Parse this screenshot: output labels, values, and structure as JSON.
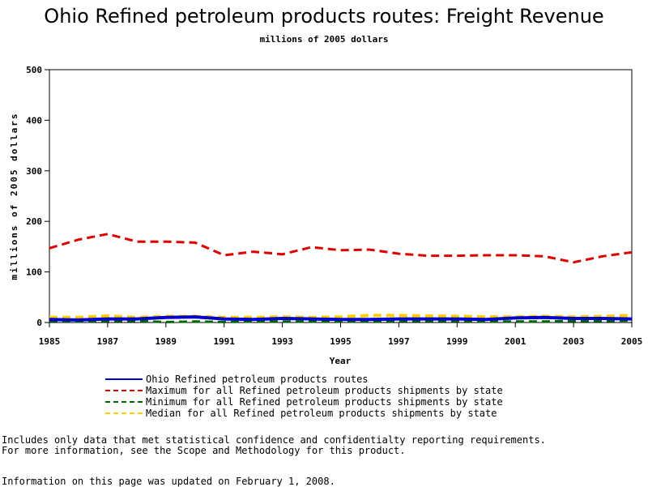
{
  "chart_data": {
    "type": "line",
    "title": "Ohio Refined petroleum products routes: Freight Revenue",
    "subtitle": "millions of 2005 dollars",
    "xlabel": "Year",
    "ylabel": "millions of 2005 dollars",
    "xlim": [
      1985,
      2005
    ],
    "ylim": [
      0,
      500
    ],
    "x_ticks": [
      "1985",
      "1987",
      "1989",
      "1991",
      "1993",
      "1995",
      "1997",
      "1999",
      "2001",
      "2003",
      "2005"
    ],
    "y_ticks": [
      "0",
      "100",
      "200",
      "300",
      "400",
      "500"
    ],
    "x": [
      1985,
      1986,
      1987,
      1988,
      1989,
      1990,
      1991,
      1992,
      1993,
      1994,
      1995,
      1996,
      1997,
      1998,
      1999,
      2000,
      2001,
      2002,
      2003,
      2004,
      2005
    ],
    "series": [
      {
        "name": "Ohio Refined petroleum products routes",
        "color": "#0000cc",
        "values": [
          6,
          5,
          7,
          7,
          10,
          11,
          7,
          6,
          8,
          7,
          6,
          6,
          7,
          7,
          7,
          6,
          9,
          10,
          8,
          8,
          7
        ]
      },
      {
        "name": "Maximum for all Refined petroleum products shipments by state",
        "color": "#dd0000",
        "values": [
          147,
          164,
          175,
          160,
          160,
          158,
          133,
          140,
          135,
          149,
          143,
          144,
          136,
          132,
          132,
          133,
          133,
          131,
          119,
          131,
          139
        ]
      },
      {
        "name": "Minimum for all Refined petroleum products shipments by state",
        "color": "#006600",
        "values": [
          3,
          2,
          3,
          3,
          1,
          2,
          1,
          2,
          2,
          2,
          2,
          2,
          3,
          3,
          3,
          2,
          2,
          2,
          3,
          3,
          4
        ]
      },
      {
        "name": "Median for all Refined petroleum products shipments by state",
        "color": "#ffcc00",
        "values": [
          10,
          10,
          13,
          10,
          12,
          12,
          10,
          10,
          11,
          10,
          11,
          14,
          14,
          13,
          12,
          11,
          11,
          12,
          11,
          12,
          14
        ]
      }
    ]
  },
  "notes": {
    "line1": "Includes only data that met statistical confidence and confidentialty reporting requirements.",
    "line2": "For more information, see the Scope and Methodology for this product.",
    "line3": "Information on this page was updated on February 1, 2008."
  }
}
